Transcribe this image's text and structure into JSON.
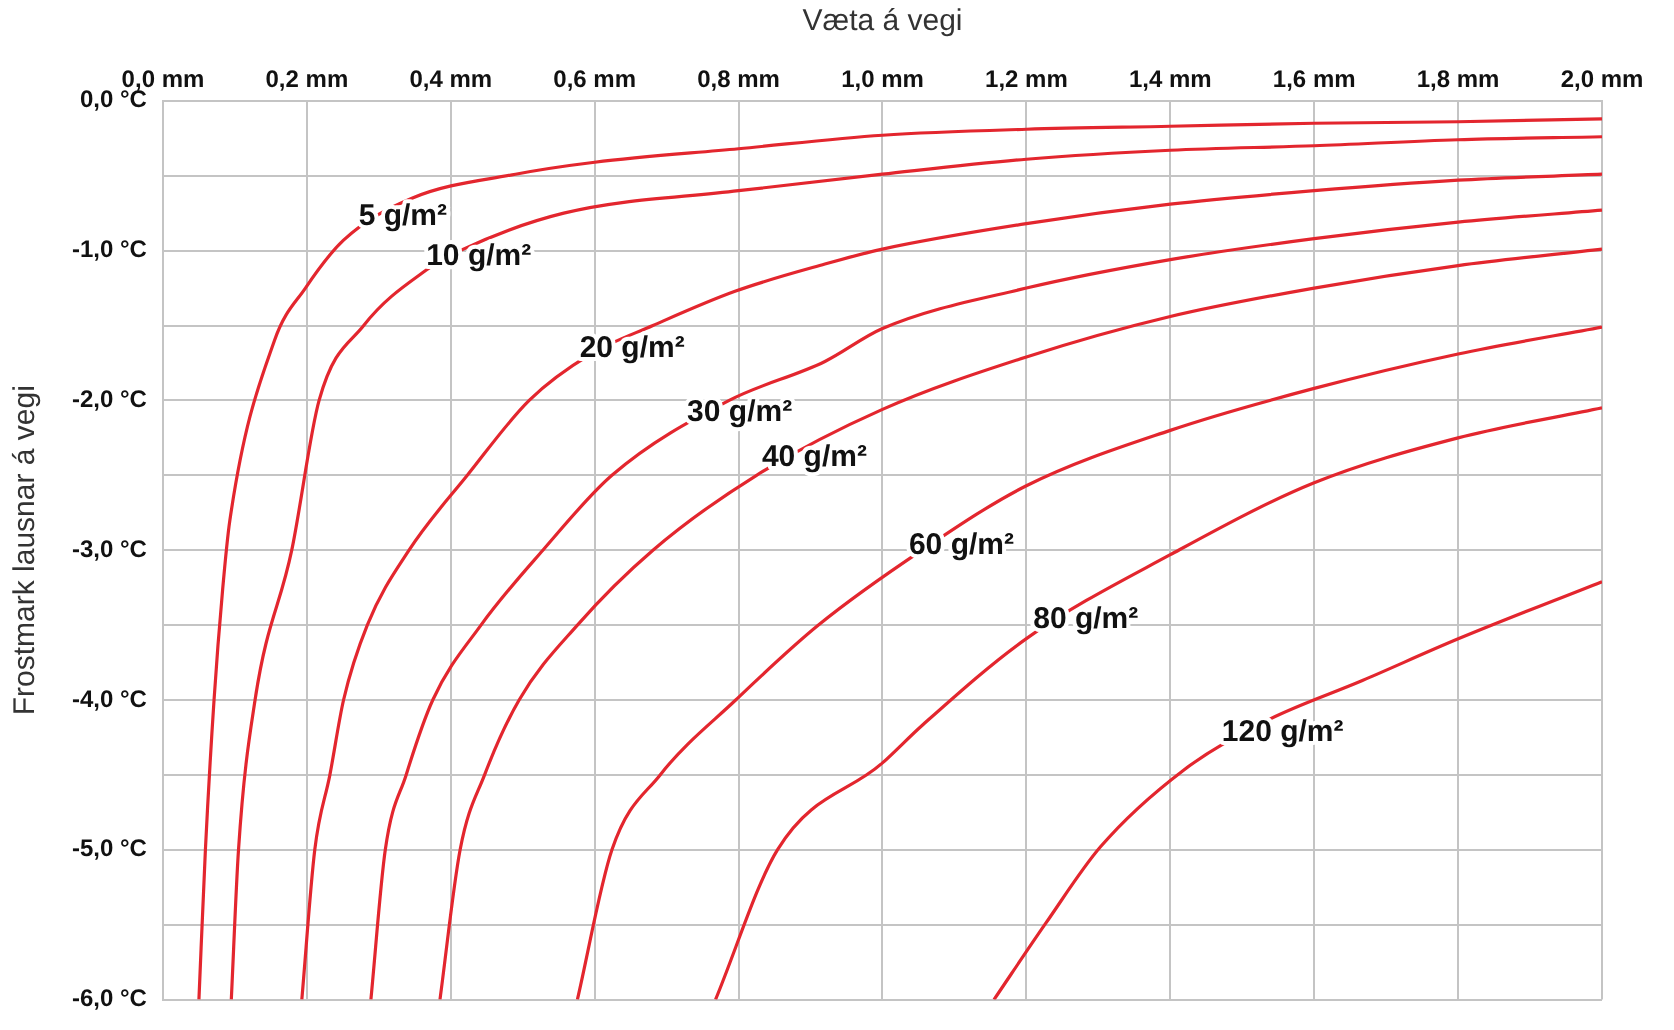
{
  "chart_data": {
    "type": "line",
    "xlabel": "Væta á vegi",
    "ylabel": "Frostmark lausnar á vegi",
    "xlim": [
      0,
      2
    ],
    "ylim": [
      -6,
      0
    ],
    "xticks": [
      {
        "value": 0,
        "label": "0,0 mm"
      },
      {
        "value": 0.2,
        "label": "0,2 mm"
      },
      {
        "value": 0.4,
        "label": "0,4 mm"
      },
      {
        "value": 0.6,
        "label": "0,6 mm"
      },
      {
        "value": 0.8,
        "label": "0,8 mm"
      },
      {
        "value": 1,
        "label": "1,0 mm"
      },
      {
        "value": 1.2,
        "label": "1,2 mm"
      },
      {
        "value": 1.4,
        "label": "1,4 mm"
      },
      {
        "value": 1.6,
        "label": "1,6 mm"
      },
      {
        "value": 1.8,
        "label": "1,8 mm"
      },
      {
        "value": 2,
        "label": "2,0 mm"
      }
    ],
    "yticks": [
      {
        "value": 0,
        "label": "0,0 °C"
      },
      {
        "value": -0.5,
        "label": null
      },
      {
        "value": -1,
        "label": "-1,0 °C"
      },
      {
        "value": -1.5,
        "label": null
      },
      {
        "value": -2,
        "label": "-2,0 °C"
      },
      {
        "value": -2.5,
        "label": null
      },
      {
        "value": -3,
        "label": "-3,0 °C"
      },
      {
        "value": -3.5,
        "label": null
      },
      {
        "value": -4,
        "label": "-4,0 °C"
      },
      {
        "value": -4.5,
        "label": null
      },
      {
        "value": -5,
        "label": "-5,0 °C"
      },
      {
        "value": -5.5,
        "label": null
      },
      {
        "value": -6,
        "label": "-6,0 °C"
      }
    ],
    "grid": true,
    "legend": false,
    "marker": "none",
    "line_style": "solid",
    "series": [
      {
        "name": "5 g/m²",
        "color": "#e3262e",
        "x": [
          0.05,
          0.059,
          0.071,
          0.083,
          0.093,
          0.155,
          0.198,
          0.251,
          0.346,
          0.49,
          0.6,
          0.8,
          1.0,
          1.2,
          1.4,
          1.6,
          1.8,
          2.0
        ],
        "values": [
          -6,
          -5,
          -4,
          -3.26,
          -2.8,
          -1.6,
          -1.25,
          -0.93,
          -0.65,
          -0.49,
          -0.41,
          -0.32,
          -0.23,
          -0.19,
          -0.17,
          -0.15,
          -0.14,
          -0.12
        ]
      },
      {
        "name": "10 g/m²",
        "color": "#e3262e",
        "x": [
          0.095,
          0.105,
          0.128,
          0.179,
          0.217,
          0.279,
          0.366,
          0.413,
          0.557,
          0.8,
          1.0,
          1.2,
          1.4,
          1.6,
          1.8,
          2.0
        ],
        "values": [
          -6,
          -5,
          -4,
          -3,
          -2,
          -1.5,
          -1.13,
          -1,
          -0.75,
          -0.6,
          -0.49,
          -0.39,
          -0.33,
          -0.3,
          -0.26,
          -0.24
        ]
      },
      {
        "name": "20 g/m²",
        "color": "#e3262e",
        "x": [
          0.193,
          0.211,
          0.232,
          0.251,
          0.284,
          0.342,
          0.423,
          0.509,
          0.595,
          0.681,
          0.796,
          0.92,
          1.0,
          1.2,
          1.4,
          1.6,
          1.8,
          2.0
        ],
        "values": [
          -6,
          -5,
          -4.5,
          -4,
          -3.5,
          -3,
          -2.5,
          -2,
          -1.69,
          -1.5,
          -1.27,
          -1.09,
          -0.99,
          -0.82,
          -0.69,
          -0.6,
          -0.53,
          -0.49
        ]
      },
      {
        "name": "30 g/m²",
        "color": "#e3262e",
        "x": [
          0.289,
          0.309,
          0.338,
          0.375,
          0.442,
          0.528,
          0.624,
          0.787,
          0.92,
          1.0,
          1.2,
          1.4,
          1.6,
          1.8,
          2.0
        ],
        "values": [
          -6,
          -5,
          -4.5,
          -4,
          -3.5,
          -3,
          -2.5,
          -2,
          -1.74,
          -1.52,
          -1.25,
          -1.06,
          -0.92,
          -0.81,
          -0.73
        ]
      },
      {
        "name": "40 g/m²",
        "color": "#e3262e",
        "x": [
          0.385,
          0.413,
          0.447,
          0.495,
          0.576,
          0.681,
          0.825,
          1.0,
          1.2,
          1.4,
          1.6,
          1.8,
          2.0
        ],
        "values": [
          -6,
          -5,
          -4.5,
          -4,
          -3.5,
          -3,
          -2.5,
          -2.06,
          -1.71,
          -1.44,
          -1.25,
          -1.1,
          -0.99
        ]
      },
      {
        "name": "60 g/m²",
        "color": "#e3262e",
        "x": [
          0.576,
          0.624,
          0.691,
          0.796,
          0.911,
          1.055,
          1.2,
          1.4,
          1.6,
          1.8,
          2.0
        ],
        "values": [
          -6,
          -5,
          -4.5,
          -4,
          -3.5,
          -3,
          -2.57,
          -2.2,
          -1.92,
          -1.69,
          -1.51
        ]
      },
      {
        "name": "80 g/m²",
        "color": "#e3262e",
        "x": [
          0.768,
          0.854,
          1.0,
          1.055,
          1.2,
          1.4,
          1.6,
          1.8,
          2.0
        ],
        "values": [
          -6,
          -5,
          -4.42,
          -4.17,
          -3.59,
          -3.03,
          -2.55,
          -2.25,
          -2.05
        ]
      },
      {
        "name": "120 g/m²",
        "color": "#e3262e",
        "x": [
          1.155,
          1.227,
          1.303,
          1.418,
          1.533,
          1.667,
          1.801,
          2.0
        ],
        "values": [
          -6,
          -5.49,
          -4.98,
          -4.47,
          -4.14,
          -3.87,
          -3.59,
          -3.21
        ]
      }
    ]
  }
}
